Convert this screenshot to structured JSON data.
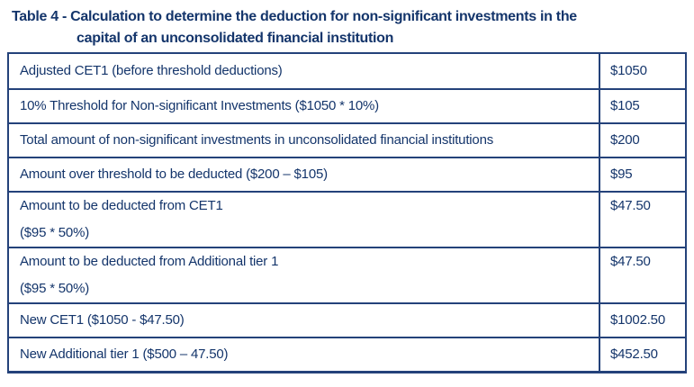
{
  "colors": {
    "text_navy": "#14356b",
    "border_navy": "#24427a",
    "background": "#ffffff"
  },
  "title": {
    "line1": "Table 4 - Calculation to determine the deduction for non-significant investments in the",
    "line2": "capital of an unconsolidated financial institution"
  },
  "table": {
    "rows": [
      {
        "label": "Adjusted CET1 (before threshold deductions)",
        "value": "$1050"
      },
      {
        "label": "10% Threshold for Non-significant Investments ($1050 * 10%)",
        "value": "$105"
      },
      {
        "label": "Total amount of non-significant investments in unconsolidated financial institutions",
        "value": "$200"
      },
      {
        "label": "Amount over threshold to be deducted ($200 – $105)",
        "value": "$95"
      },
      {
        "label": "Amount to be deducted from CET1",
        "label_line2": "($95 * 50%)",
        "value": "$47.50"
      },
      {
        "label": "Amount to be deducted from Additional tier 1",
        "label_line2": "($95 * 50%)",
        "value": "$47.50"
      },
      {
        "label": "New CET1 ($1050 - $47.50)",
        "value": "$1002.50"
      },
      {
        "label": "New Additional tier 1 ($500 – 47.50)",
        "value": "$452.50"
      }
    ]
  }
}
